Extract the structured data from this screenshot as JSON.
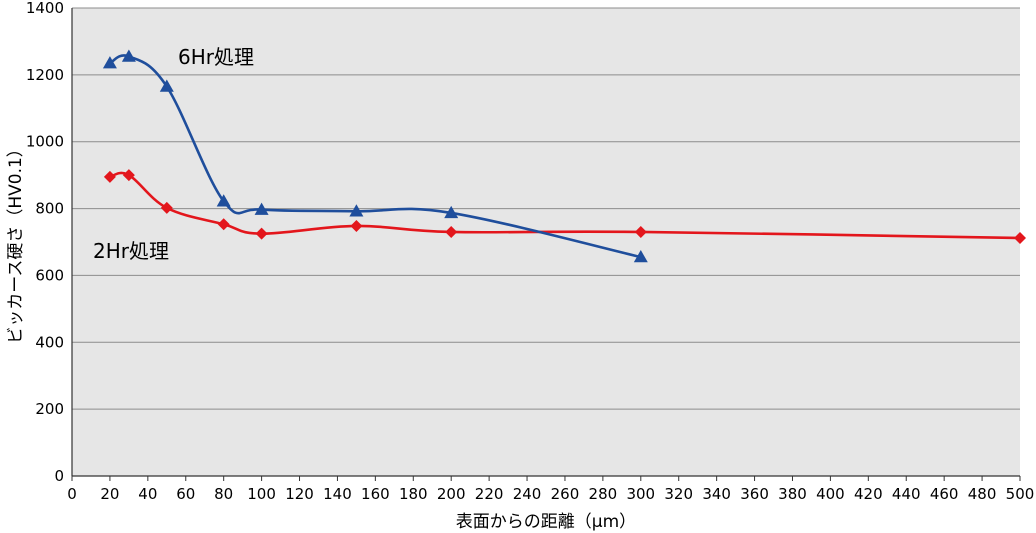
{
  "chart_data": {
    "type": "line",
    "title": "",
    "xlabel": "表面からの距離（µm）",
    "ylabel": "ビッカース硬さ（HV0.1）",
    "xlim": [
      0,
      500
    ],
    "ylim": [
      0,
      1400
    ],
    "x_ticks": [
      0,
      20,
      40,
      60,
      80,
      100,
      120,
      140,
      160,
      180,
      200,
      220,
      240,
      260,
      280,
      300,
      320,
      340,
      360,
      380,
      400,
      420,
      440,
      460,
      480,
      500
    ],
    "y_ticks": [
      0,
      200,
      400,
      600,
      800,
      1000,
      1200,
      1400
    ],
    "grid": "horizontal",
    "series": [
      {
        "name": "6Hr処理",
        "marker": "triangle",
        "color": "#1f4e9c",
        "points": [
          [
            20,
            1235
          ],
          [
            30,
            1255
          ],
          [
            50,
            1165
          ],
          [
            80,
            822
          ],
          [
            100,
            797
          ],
          [
            150,
            792
          ],
          [
            200,
            787
          ],
          [
            300,
            655
          ]
        ]
      },
      {
        "name": "2Hr処理",
        "marker": "diamond",
        "color": "#e3161c",
        "points": [
          [
            20,
            895
          ],
          [
            30,
            900
          ],
          [
            50,
            802
          ],
          [
            80,
            753
          ],
          [
            100,
            725
          ],
          [
            150,
            748
          ],
          [
            200,
            730
          ],
          [
            300,
            730
          ],
          [
            500,
            712
          ]
        ]
      }
    ]
  }
}
